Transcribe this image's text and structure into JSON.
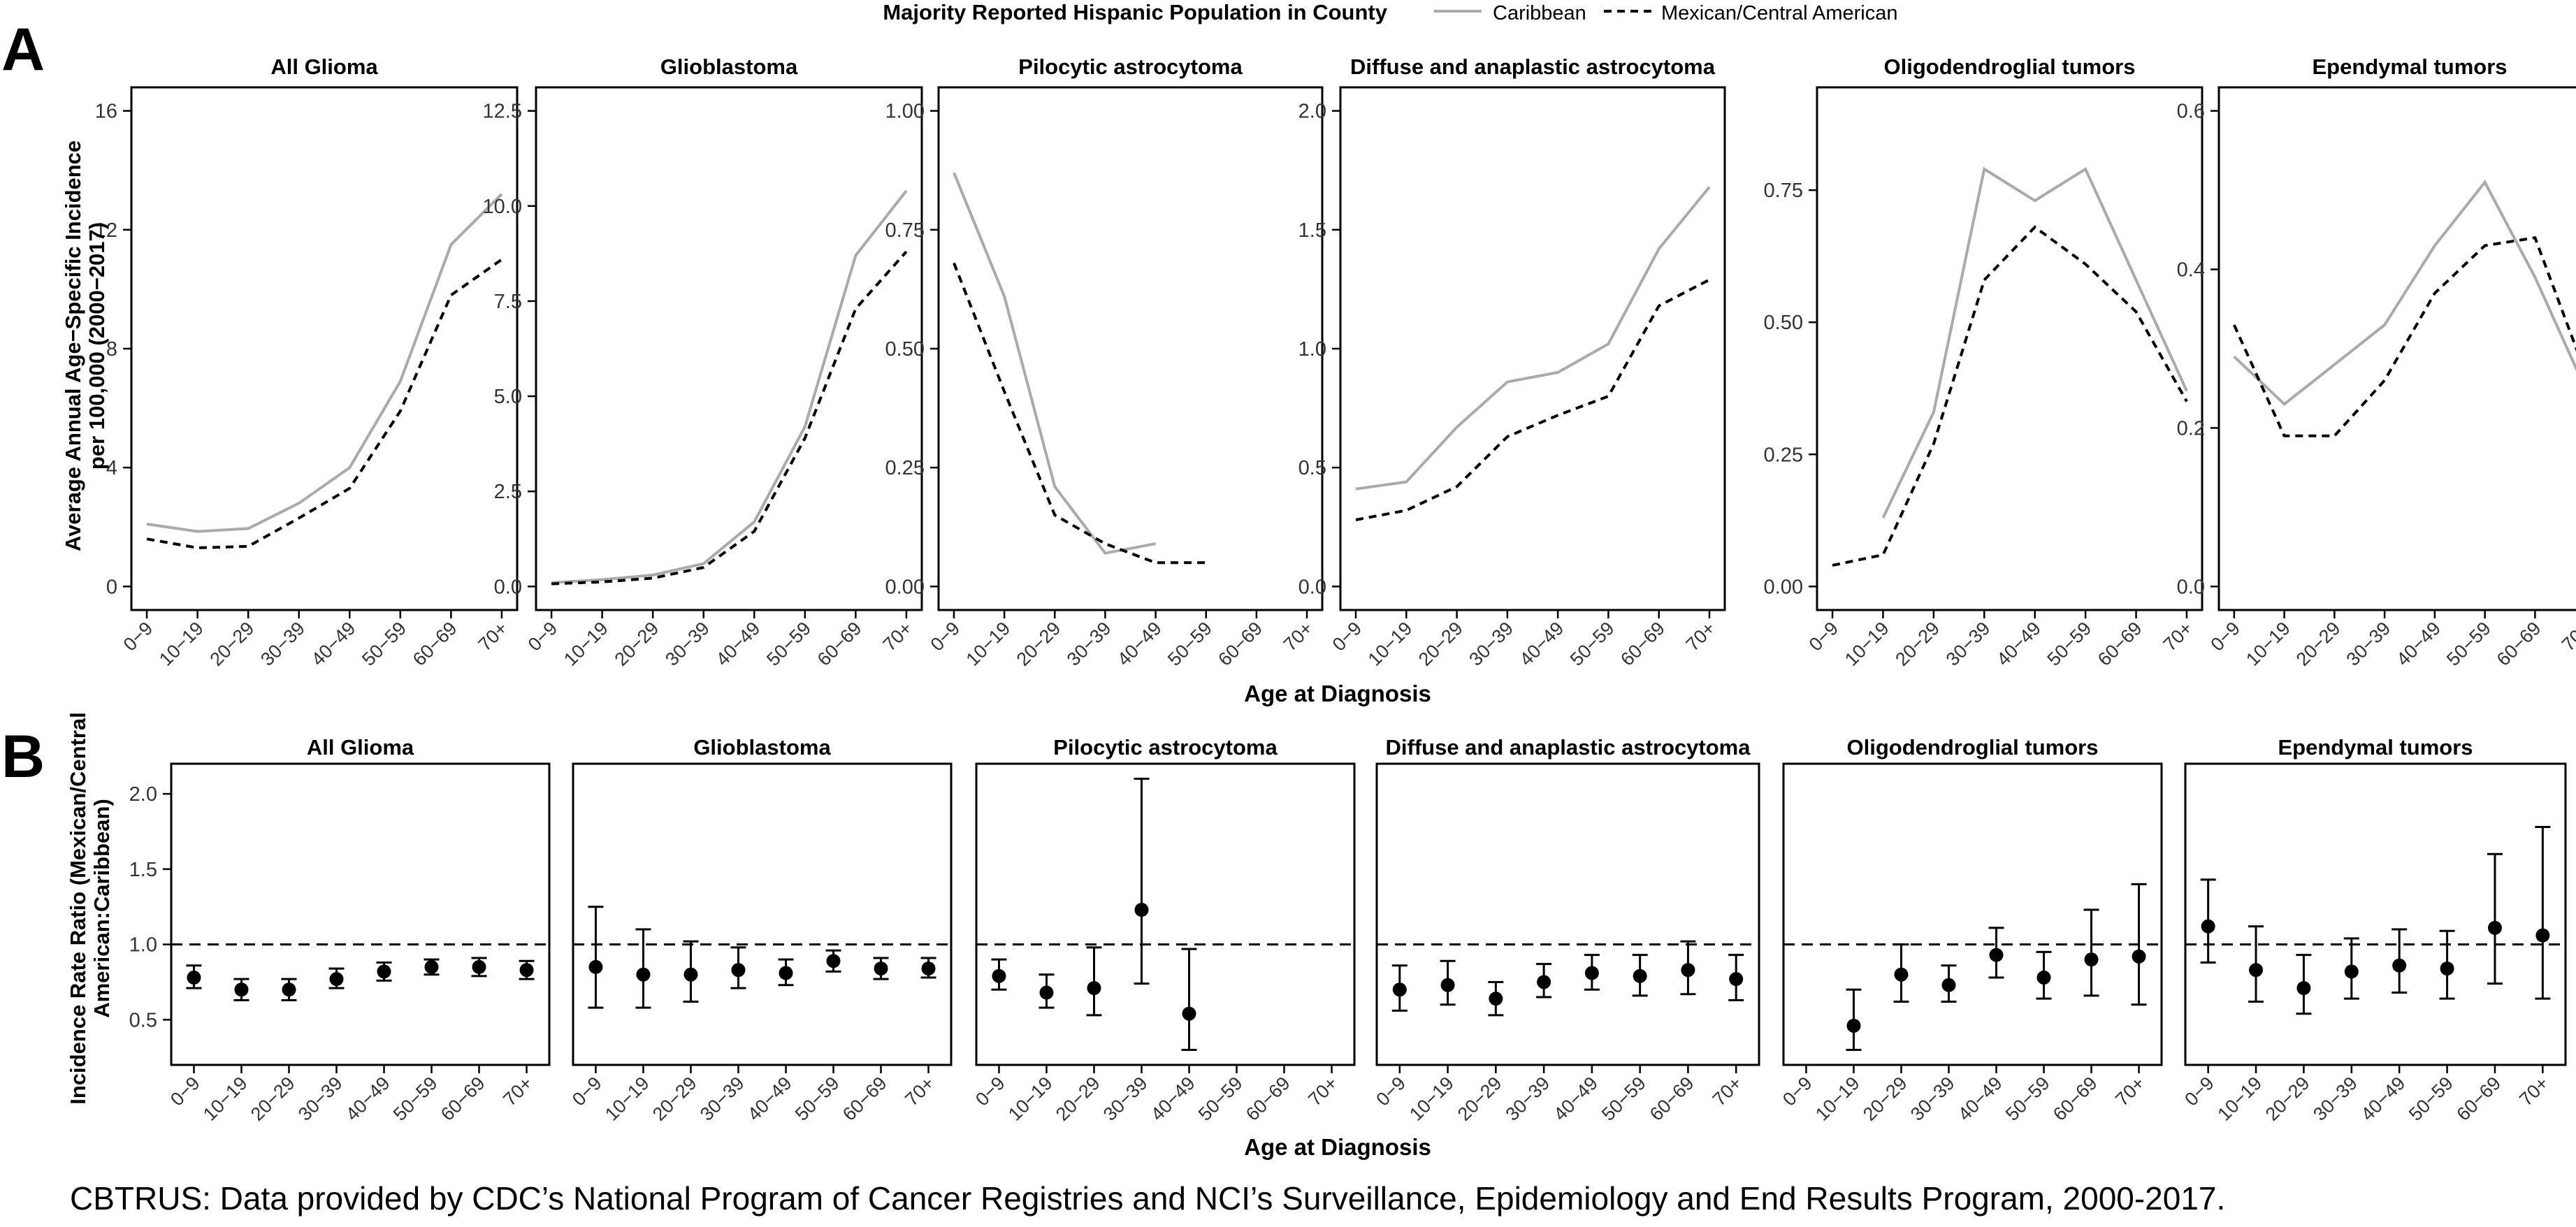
{
  "legend": {
    "title": "Majority Reported Hispanic Population in County",
    "items": [
      {
        "name": "Caribbean",
        "style": "solid",
        "color": "#aaaaaa"
      },
      {
        "name": "Mexican/Central American",
        "style": "dashed",
        "color": "#000000"
      }
    ]
  },
  "caption": "CBTRUS: Data provided by CDC’s National Program of Cancer Registries and NCI’s Surveillance, Epidemiology and End Results Program, 2000-2017.",
  "colors": {
    "caribbean": "#aaaaaa",
    "mexican": "#000000"
  },
  "chart_data": [
    {
      "panel": "A",
      "type": "line",
      "ylabel": [
        "Average Annual Age−Specific Incidence",
        "per 100,000 (2000−2017)"
      ],
      "xlabel": "Age at Diagnosis",
      "categories": [
        "0−9",
        "10−19",
        "20−29",
        "30−39",
        "40−49",
        "50−59",
        "60−69",
        "70+"
      ],
      "facets": [
        {
          "title": "All Glioma",
          "ylim": [
            0,
            16
          ],
          "yticks": [
            0,
            4,
            8,
            12,
            16
          ],
          "series": [
            {
              "name": "Caribbean",
              "values": [
                2.1,
                1.85,
                1.95,
                2.8,
                4.0,
                6.9,
                11.5,
                13.2
              ]
            },
            {
              "name": "Mexican/Central American",
              "values": [
                1.6,
                1.3,
                1.35,
                2.3,
                3.3,
                5.9,
                9.8,
                11.0
              ]
            }
          ]
        },
        {
          "title": "Glioblastoma",
          "ylim": [
            0,
            12.5
          ],
          "yticks": [
            0.0,
            2.5,
            5.0,
            7.5,
            10.0,
            12.5
          ],
          "series": [
            {
              "name": "Caribbean",
              "values": [
                0.1,
                0.18,
                0.3,
                0.6,
                1.7,
                4.2,
                8.7,
                10.4
              ]
            },
            {
              "name": "Mexican/Central American",
              "values": [
                0.07,
                0.12,
                0.22,
                0.5,
                1.45,
                3.9,
                7.3,
                8.8
              ]
            }
          ]
        },
        {
          "title": "Pilocytic astrocytoma",
          "ylim": [
            0,
            1.0
          ],
          "yticks": [
            0.0,
            0.25,
            0.5,
            0.75,
            1.0
          ],
          "series": [
            {
              "name": "Caribbean",
              "values": [
                0.87,
                0.61,
                0.21,
                0.07,
                0.09,
                null,
                null,
                null
              ]
            },
            {
              "name": "Mexican/Central American",
              "values": [
                0.68,
                0.41,
                0.15,
                0.09,
                0.05,
                0.05,
                null,
                null
              ]
            }
          ]
        },
        {
          "title": "Diffuse and anaplastic astrocytoma",
          "ylim": [
            0,
            2.0
          ],
          "yticks": [
            0.0,
            0.5,
            1.0,
            1.5,
            2.0
          ],
          "series": [
            {
              "name": "Caribbean",
              "values": [
                0.41,
                0.44,
                0.67,
                0.86,
                0.9,
                1.02,
                1.42,
                1.68
              ]
            },
            {
              "name": "Mexican/Central American",
              "values": [
                0.28,
                0.32,
                0.42,
                0.63,
                0.72,
                0.8,
                1.18,
                1.29
              ]
            }
          ]
        },
        {
          "title": "Oligodendroglial tumors",
          "ylim": [
            0,
            0.9
          ],
          "yticks": [
            0.0,
            0.25,
            0.5,
            0.75
          ],
          "series": [
            {
              "name": "Caribbean",
              "values": [
                null,
                0.13,
                0.33,
                0.79,
                0.73,
                0.79,
                0.58,
                0.37
              ]
            },
            {
              "name": "Mexican/Central American",
              "values": [
                0.04,
                0.06,
                0.27,
                0.58,
                0.68,
                0.61,
                0.52,
                0.35
              ]
            }
          ]
        },
        {
          "title": "Ependymal tumors",
          "ylim": [
            0,
            0.6
          ],
          "yticks": [
            0.0,
            0.2,
            0.4,
            0.6
          ],
          "series": [
            {
              "name": "Caribbean",
              "values": [
                0.29,
                0.23,
                0.28,
                0.33,
                0.43,
                0.51,
                0.39,
                0.25
              ]
            },
            {
              "name": "Mexican/Central American",
              "values": [
                0.33,
                0.19,
                0.19,
                0.26,
                0.37,
                0.43,
                0.44,
                0.27
              ]
            }
          ]
        }
      ]
    },
    {
      "panel": "B",
      "type": "scatter",
      "ylabel": [
        "Incidence Rate Ratio (Mexican/Central",
        "American:Caribbean)"
      ],
      "xlabel": "Age at Diagnosis",
      "categories": [
        "0−9",
        "10−19",
        "20−29",
        "30−39",
        "40−49",
        "50−59",
        "60−69",
        "70+"
      ],
      "ylim": [
        0.2,
        2.2
      ],
      "yticks": [
        0.5,
        1.0,
        1.5,
        2.0
      ],
      "reference_line": 1.0,
      "facets": [
        {
          "title": "All Glioma",
          "points": [
            [
              0.78,
              0.71,
              0.86
            ],
            [
              0.7,
              0.63,
              0.77
            ],
            [
              0.7,
              0.63,
              0.77
            ],
            [
              0.77,
              0.71,
              0.84
            ],
            [
              0.82,
              0.76,
              0.88
            ],
            [
              0.85,
              0.8,
              0.9
            ],
            [
              0.85,
              0.79,
              0.91
            ],
            [
              0.83,
              0.77,
              0.89
            ]
          ]
        },
        {
          "title": "Glioblastoma",
          "points": [
            [
              0.85,
              0.58,
              1.25
            ],
            [
              0.8,
              0.58,
              1.1
            ],
            [
              0.8,
              0.62,
              1.02
            ],
            [
              0.83,
              0.71,
              0.98
            ],
            [
              0.81,
              0.73,
              0.9
            ],
            [
              0.89,
              0.82,
              0.96
            ],
            [
              0.84,
              0.77,
              0.91
            ],
            [
              0.84,
              0.78,
              0.91
            ]
          ]
        },
        {
          "title": "Pilocytic astrocytoma",
          "points": [
            [
              0.79,
              0.7,
              0.9
            ],
            [
              0.68,
              0.58,
              0.8
            ],
            [
              0.71,
              0.53,
              0.98
            ],
            [
              1.23,
              0.74,
              2.1
            ],
            [
              0.54,
              0.3,
              0.97
            ],
            null,
            null,
            null
          ]
        },
        {
          "title": "Diffuse and anaplastic astrocytoma",
          "points": [
            [
              0.7,
              0.56,
              0.86
            ],
            [
              0.73,
              0.6,
              0.89
            ],
            [
              0.64,
              0.53,
              0.75
            ],
            [
              0.75,
              0.65,
              0.87
            ],
            [
              0.81,
              0.7,
              0.93
            ],
            [
              0.79,
              0.66,
              0.93
            ],
            [
              0.83,
              0.67,
              1.02
            ],
            [
              0.77,
              0.63,
              0.93
            ]
          ]
        },
        {
          "title": "Oligodendroglial tumors",
          "points": [
            null,
            [
              0.46,
              0.3,
              0.7
            ],
            [
              0.8,
              0.62,
              1.0
            ],
            [
              0.73,
              0.62,
              0.86
            ],
            [
              0.93,
              0.78,
              1.11
            ],
            [
              0.78,
              0.64,
              0.95
            ],
            [
              0.9,
              0.66,
              1.23
            ],
            [
              0.92,
              0.6,
              1.4
            ]
          ]
        },
        {
          "title": "Ependymal tumors",
          "points": [
            [
              1.12,
              0.88,
              1.43
            ],
            [
              0.83,
              0.62,
              1.12
            ],
            [
              0.71,
              0.54,
              0.93
            ],
            [
              0.82,
              0.64,
              1.04
            ],
            [
              0.86,
              0.68,
              1.1
            ],
            [
              0.84,
              0.64,
              1.09
            ],
            [
              1.11,
              0.74,
              1.6
            ],
            [
              1.06,
              0.64,
              1.78
            ]
          ]
        }
      ]
    }
  ]
}
